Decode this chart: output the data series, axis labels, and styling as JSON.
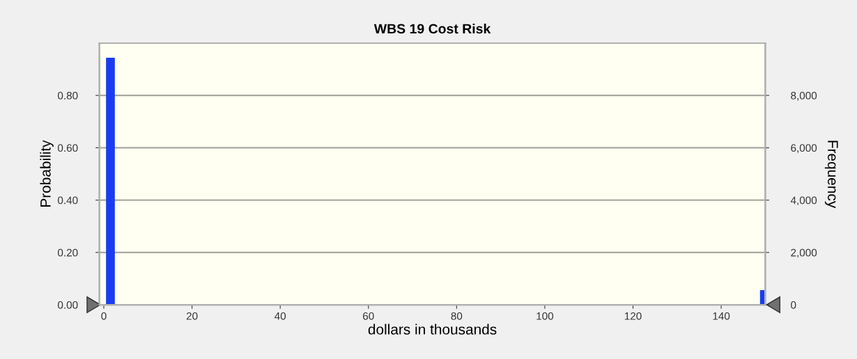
{
  "chart_data": {
    "type": "histogram",
    "title": "WBS 19 Cost Risk",
    "xlabel": "dollars in thousands",
    "ylabel": "Probability",
    "y2label": "Frequency",
    "bins": [
      0.5,
      2.5,
      148.8,
      149.8
    ],
    "values": [
      0.944,
      0,
      0.056
    ],
    "color": "#1a3cf0",
    "xlim": [
      -1,
      150
    ],
    "xticks": [
      0,
      20,
      40,
      60,
      80,
      100,
      120,
      140
    ],
    "ylim": [
      0,
      1.0
    ],
    "yticks": [
      {
        "value": 0,
        "label": "0.00"
      },
      {
        "value": 0.2,
        "label": "0.20"
      },
      {
        "value": 0.4,
        "label": "0.40"
      },
      {
        "value": 0.6,
        "label": "0.60"
      },
      {
        "value": 0.8,
        "label": "0.80"
      }
    ],
    "y2lim": [
      0,
      10000
    ],
    "y2ticks": [
      0,
      {
        "value": 2000,
        "label": "2,000"
      },
      {
        "value": 4000,
        "label": "4,000"
      },
      {
        "value": 6000,
        "label": "6,000"
      },
      {
        "value": 8000,
        "label": "8,000"
      }
    ],
    "grid": "y"
  }
}
